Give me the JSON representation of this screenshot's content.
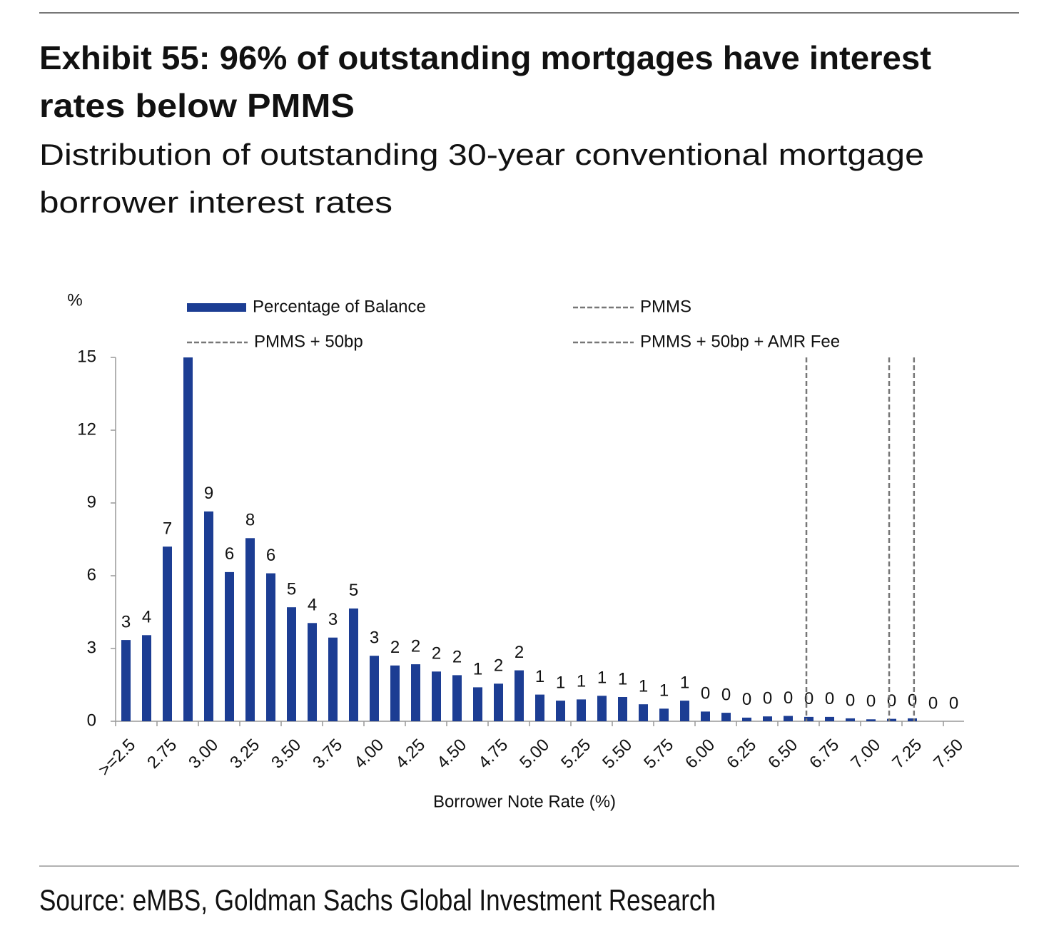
{
  "chart_data": {
    "type": "bar",
    "title": [
      "Exhibit 55: 96% of outstanding mortgages have interest",
      "rates below PMMS"
    ],
    "subtitle": [
      "Distribution of outstanding 30-year conventional mortgage",
      "borrower interest rates"
    ],
    "y_label": "%",
    "x_label": "Borrower Note Rate (%)",
    "source": "Source: eMBS, Goldman Sachs Global Investment Research",
    "categories": [
      ">=2.5",
      null,
      "2.75",
      null,
      "3.00",
      null,
      "3.25",
      null,
      "3.50",
      null,
      "3.75",
      null,
      "4.00",
      null,
      "4.25",
      null,
      "4.50",
      null,
      "4.75",
      null,
      "5.00",
      null,
      "5.25",
      null,
      "5.50",
      null,
      "5.75",
      null,
      "6.00",
      null,
      "6.25",
      null,
      "6.50",
      null,
      "6.75",
      null,
      "7.00",
      null,
      "7.25",
      null,
      "7.50"
    ],
    "series": [
      {
        "name": "Percentage of Balance",
        "color": "#1c3d93",
        "values": [
          3.35,
          3.55,
          7.2,
          15.0,
          8.65,
          6.15,
          7.55,
          6.1,
          4.7,
          4.05,
          3.45,
          4.65,
          2.7,
          2.3,
          2.35,
          2.05,
          1.9,
          1.4,
          1.55,
          2.1,
          1.1,
          0.85,
          0.9,
          1.05,
          1.0,
          0.7,
          0.52,
          0.85,
          0.4,
          0.35,
          0.15,
          0.2,
          0.22,
          0.18,
          0.18,
          0.12,
          0.08,
          0.1,
          0.12,
          0,
          0
        ],
        "value_labels": [
          "3",
          "4",
          "7",
          null,
          "9",
          "6",
          "8",
          "6",
          "5",
          "4",
          "3",
          "5",
          "3",
          "2",
          "2",
          "2",
          "2",
          "1",
          "2",
          "2",
          "1",
          "1",
          "1",
          "1",
          "1",
          "1",
          "1",
          "1",
          "0",
          "0",
          "0",
          "0",
          "0",
          "0",
          "0",
          "0",
          "0",
          "0",
          "0",
          "0",
          "0"
        ]
      }
    ],
    "reference_lines": [
      {
        "name": "PMMS",
        "x": 6.61,
        "color": "#777777"
      },
      {
        "name": "PMMS + 50bp",
        "x": 7.11,
        "color": "#777777"
      },
      {
        "name": "PMMS + 50bp + AMR Fee",
        "x": 7.26,
        "color": "#777777"
      }
    ],
    "xlim": [
      2.4375,
      7.5625
    ],
    "ylim": [
      0,
      15
    ],
    "yticks": [
      0,
      3,
      6,
      9,
      12,
      15
    ]
  }
}
